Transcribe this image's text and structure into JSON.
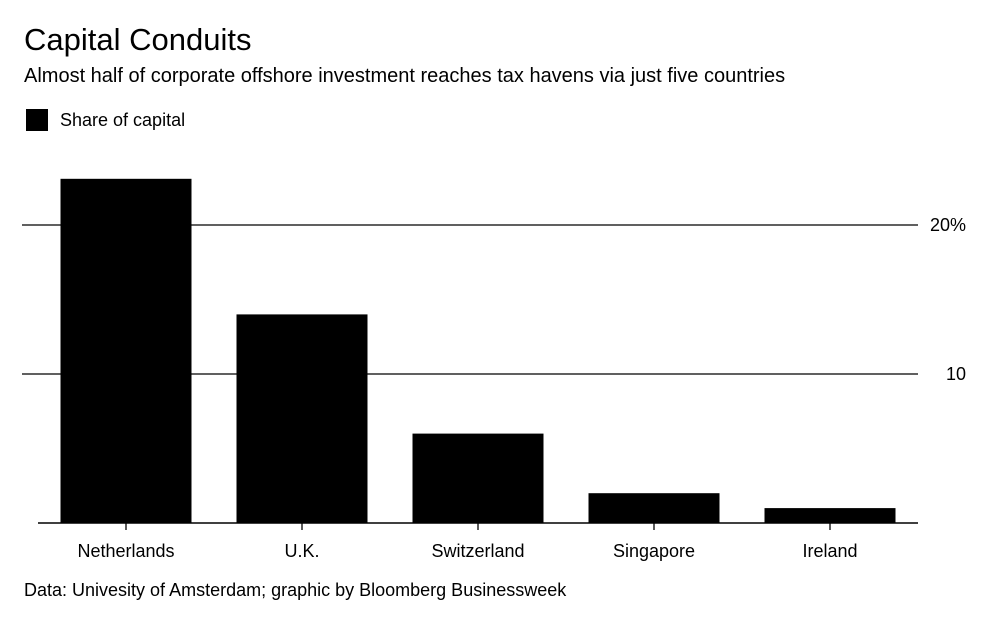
{
  "title": "Capital Conduits",
  "subtitle": "Almost half of corporate offshore investment reaches tax havens via just five countries",
  "legend": {
    "label": "Share of capital",
    "color": "#000000"
  },
  "source": "Data: Univesity of Amsterdam; graphic by Bloomberg Businessweek",
  "chart_data": {
    "type": "bar",
    "categories": [
      "Netherlands",
      "U.K.",
      "Switzerland",
      "Singapore",
      "Ireland"
    ],
    "series": [
      {
        "name": "Share of capital",
        "values": [
          23.1,
          14.0,
          6.0,
          2.0,
          1.0
        ],
        "color": "#000000"
      }
    ],
    "ylim": [
      0,
      23.5
    ],
    "yticks": [
      10,
      20
    ],
    "ytick_labels": [
      "10",
      "20%"
    ],
    "ytick_position": "right",
    "grid": true
  }
}
